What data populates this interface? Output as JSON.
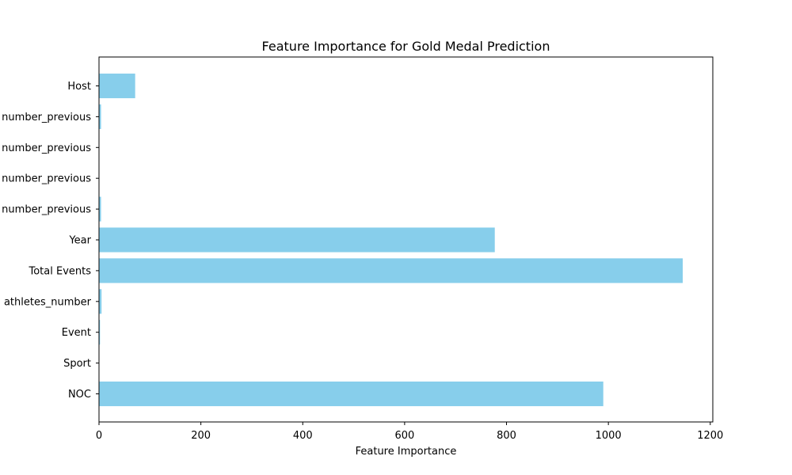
{
  "chart_data": {
    "type": "bar",
    "orientation": "horizontal",
    "title": "Feature Importance for Gold Medal Prediction",
    "xlabel": "Feature Importance",
    "ylabel": "",
    "xlim": [
      0,
      1205
    ],
    "xticks": [
      0,
      200,
      400,
      600,
      800,
      1000,
      1200
    ],
    "categories": [
      "Host",
      "number_previous",
      "number_previous",
      "number_previous",
      "number_previous",
      "Year",
      "Total Events",
      "athletes_number",
      "Event",
      "Sport",
      "NOC"
    ],
    "values": [
      71,
      4,
      0,
      0,
      4,
      777,
      1146,
      5,
      2,
      0,
      990
    ],
    "bar_color": "#87ceeb",
    "grid": false
  }
}
